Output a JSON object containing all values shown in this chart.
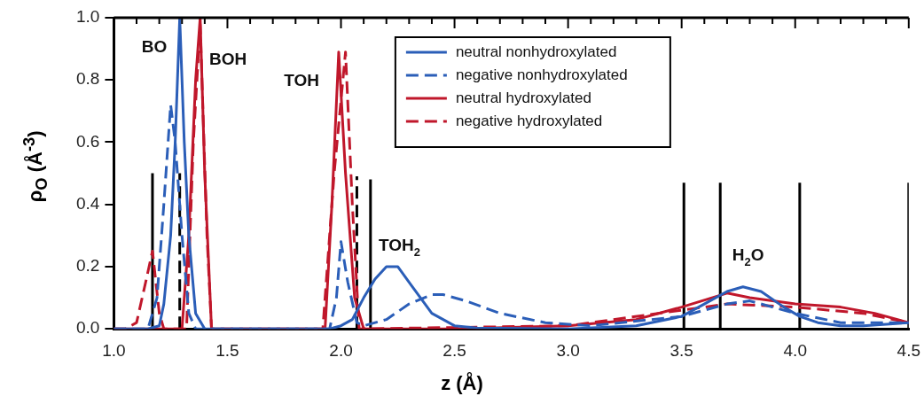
{
  "chart_data": {
    "type": "line",
    "xlabel": "z (Å)",
    "ylabel": "ρ$_{O}$ (Å$^{-3}$)",
    "xlim": [
      1.0,
      4.5
    ],
    "ylim": [
      0,
      1.0
    ],
    "xticks": [
      {
        "value": 1,
        "label": "1.0"
      },
      {
        "value": 1.1,
        "label": null
      },
      {
        "value": 1.2,
        "label": null
      },
      {
        "value": 1.3,
        "label": null
      },
      {
        "value": 1.4,
        "label": null
      },
      1.5,
      {
        "value": 1.6,
        "label": null
      },
      {
        "value": 1.7,
        "label": null
      },
      {
        "value": 1.8,
        "label": null
      },
      {
        "value": 1.9,
        "label": null
      },
      {
        "value": 2,
        "label": "2.0"
      },
      {
        "value": 2.1,
        "label": null
      },
      {
        "value": 2.2,
        "label": null
      },
      {
        "value": 2.3,
        "label": null
      },
      {
        "value": 2.4,
        "label": null
      },
      2.5,
      {
        "value": 2.6,
        "label": null
      },
      {
        "value": 2.7,
        "label": null
      },
      {
        "value": 2.8,
        "label": null
      },
      {
        "value": 2.9,
        "label": null
      },
      {
        "value": 3,
        "label": "3.0"
      },
      {
        "value": 3.1,
        "label": null
      },
      {
        "value": 3.2,
        "label": null
      },
      {
        "value": 3.3,
        "label": null
      },
      {
        "value": 3.4,
        "label": null
      },
      3.5,
      {
        "value": 3.6,
        "label": null
      },
      {
        "value": 3.7,
        "label": null
      },
      {
        "value": 3.8,
        "label": null
      },
      {
        "value": 3.9,
        "label": null
      },
      {
        "value": 4,
        "label": "4.0"
      },
      {
        "value": 4.1,
        "label": null
      },
      {
        "value": 4.2,
        "label": null
      },
      {
        "value": 4.3,
        "label": null
      },
      {
        "value": 4.4,
        "label": null
      },
      4.5
    ],
    "yticks": [
      {
        "value": 0,
        "label": "0.0"
      },
      0.2,
      0.4,
      0.6,
      0.8,
      {
        "value": 1,
        "label": "1.0"
      }
    ],
    "grid": false,
    "legend": "top right",
    "marker": "none",
    "annotations": [
      "BO",
      "BOH",
      "TOH",
      "TOH$_{2}$",
      "H$_{2}$O"
    ],
    "series": [
      {
        "name": "neutral nonhydroxylated",
        "color": "#2b5eb8",
        "line_style": "solid",
        "x": [
          1.0,
          1.15,
          1.2,
          1.22,
          1.25,
          1.27,
          1.29,
          1.31,
          1.33,
          1.36,
          1.4,
          1.95,
          2.0,
          2.05,
          2.1,
          2.15,
          2.2,
          2.25,
          2.3,
          2.35,
          2.4,
          2.5,
          2.6,
          3.0,
          3.3,
          3.5,
          3.6,
          3.7,
          3.77,
          3.85,
          3.95,
          4.02,
          4.1,
          4.2,
          4.3,
          4.5
        ],
        "values": [
          0,
          0,
          0.01,
          0.08,
          0.3,
          0.6,
          1.0,
          0.6,
          0.3,
          0.05,
          0,
          0,
          0.01,
          0.03,
          0.1,
          0.16,
          0.2,
          0.2,
          0.15,
          0.1,
          0.05,
          0.01,
          0.003,
          0,
          0.01,
          0.04,
          0.08,
          0.12,
          0.135,
          0.12,
          0.07,
          0.04,
          0.02,
          0.01,
          0.01,
          0.02
        ]
      },
      {
        "name": "negative nonhydroxylated",
        "color": "#2b5eb8",
        "line_style": "dashed",
        "x": [
          1.0,
          1.15,
          1.19,
          1.22,
          1.25,
          1.27,
          1.3,
          1.33,
          1.36,
          1.95,
          1.98,
          2.0,
          2.03,
          2.07,
          2.1,
          2.2,
          2.3,
          2.4,
          2.45,
          2.55,
          2.7,
          2.9,
          3.1,
          3.5,
          3.7,
          3.8,
          3.9,
          4.0,
          4.2,
          4.5
        ],
        "values": [
          0,
          0,
          0.1,
          0.4,
          0.72,
          0.6,
          0.3,
          0.05,
          0,
          0,
          0.1,
          0.28,
          0.15,
          0.02,
          0.01,
          0.03,
          0.08,
          0.11,
          0.11,
          0.09,
          0.05,
          0.02,
          0.01,
          0.04,
          0.08,
          0.09,
          0.07,
          0.05,
          0.02,
          0.02
        ]
      },
      {
        "name": "neutral hydroxylated",
        "color": "#c0172b",
        "line_style": "solid",
        "x": [
          1.0,
          1.3,
          1.33,
          1.36,
          1.38,
          1.4,
          1.43,
          1.93,
          1.96,
          1.99,
          2.02,
          2.06,
          2.1,
          2.5,
          3.0,
          3.3,
          3.5,
          3.7,
          3.8,
          4.0,
          4.2,
          4.35,
          4.5
        ],
        "values": [
          0,
          0,
          0.3,
          0.8,
          1.0,
          0.5,
          0,
          0,
          0.4,
          0.89,
          0.5,
          0.1,
          0,
          0,
          0.01,
          0.03,
          0.07,
          0.115,
          0.1,
          0.08,
          0.07,
          0.05,
          0.02
        ]
      },
      {
        "name": "negative hydroxylated",
        "color": "#c0172b",
        "line_style": "dashed",
        "x": [
          1.0,
          1.05,
          1.1,
          1.14,
          1.17,
          1.2,
          1.22,
          1.32,
          1.35,
          1.38,
          1.41,
          1.43,
          1.92,
          1.97,
          2.02,
          2.05,
          2.08,
          3.0,
          3.5,
          3.7,
          4.0,
          4.3,
          4.5
        ],
        "values": [
          0,
          0,
          0.02,
          0.15,
          0.25,
          0.05,
          0,
          0,
          0.6,
          0.98,
          0.3,
          0,
          0,
          0.5,
          0.89,
          0.4,
          0,
          0.01,
          0.06,
          0.08,
          0.07,
          0.05,
          0.02
        ]
      },
      {
        "color": "#000000",
        "line_style": "solid",
        "x": [
          1.17,
          1.17
        ],
        "values": [
          0,
          0.5
        ]
      },
      {
        "color": "#000000",
        "line_style": "dashed",
        "x": [
          1.29,
          1.29
        ],
        "values": [
          0,
          0.5
        ]
      },
      {
        "color": "#000000",
        "line_style": "dashed",
        "x": [
          2.07,
          2.07
        ],
        "values": [
          0,
          0.49
        ]
      },
      {
        "color": "#000000",
        "line_style": "solid",
        "x": [
          2.13,
          2.13
        ],
        "values": [
          0,
          0.48
        ]
      },
      {
        "color": "#000000",
        "line_style": "solid",
        "x": [
          3.51,
          3.51
        ],
        "values": [
          0,
          0.47
        ]
      },
      {
        "color": "#000000",
        "line_style": "solid",
        "x": [
          3.67,
          3.67
        ],
        "values": [
          0,
          0.47
        ]
      },
      {
        "color": "#000000",
        "line_style": "solid",
        "x": [
          4.02,
          4.02
        ],
        "values": [
          0,
          0.47
        ]
      },
      {
        "color": "#000000",
        "line_style": "solid",
        "x": [
          4.5,
          4.5
        ],
        "values": [
          0,
          0.47
        ]
      }
    ]
  }
}
